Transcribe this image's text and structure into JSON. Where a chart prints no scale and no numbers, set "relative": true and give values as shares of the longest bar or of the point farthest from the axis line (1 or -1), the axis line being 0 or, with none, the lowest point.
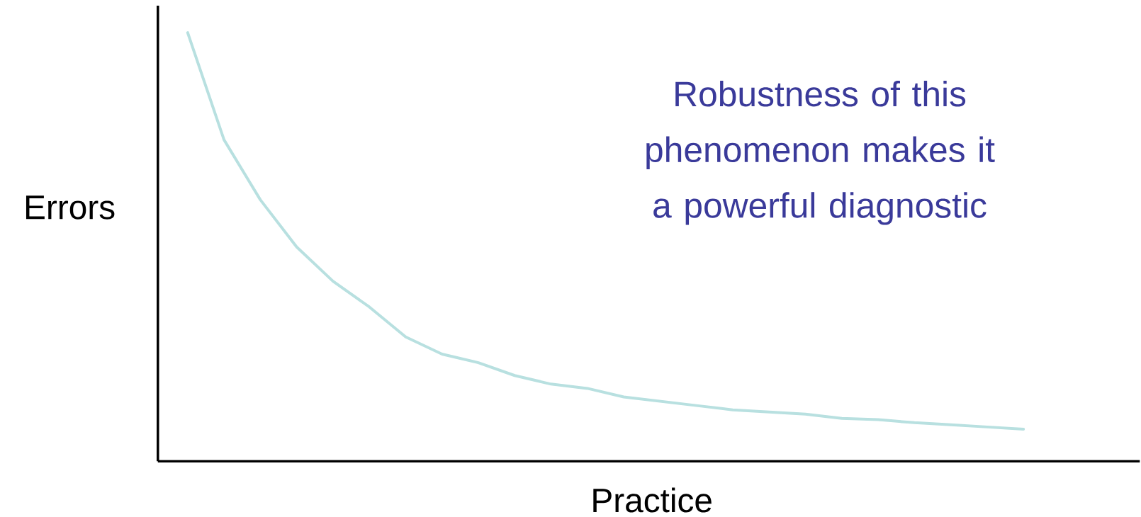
{
  "chart_data": {
    "type": "line",
    "relative": true,
    "xlabel": "Practice",
    "ylabel": "Errors",
    "categories": [
      null,
      null,
      null,
      null,
      null,
      null,
      null,
      null,
      null,
      null,
      null,
      null,
      null,
      null,
      null,
      null,
      null,
      null,
      null,
      null,
      null,
      null,
      null,
      null
    ],
    "series": [
      {
        "color": "#b8e0e0",
        "values": [
          1.0,
          0.75,
          0.61,
          0.5,
          0.42,
          0.36,
          0.29,
          0.25,
          0.23,
          0.2,
          0.18,
          0.17,
          0.15,
          0.14,
          0.13,
          0.12,
          0.115,
          0.11,
          0.1,
          0.097,
          0.09,
          0.085,
          0.08,
          0.075
        ]
      }
    ],
    "annotations": [
      "Robustness of this phenomenon makes it a powerful diagnostic"
    ]
  }
}
